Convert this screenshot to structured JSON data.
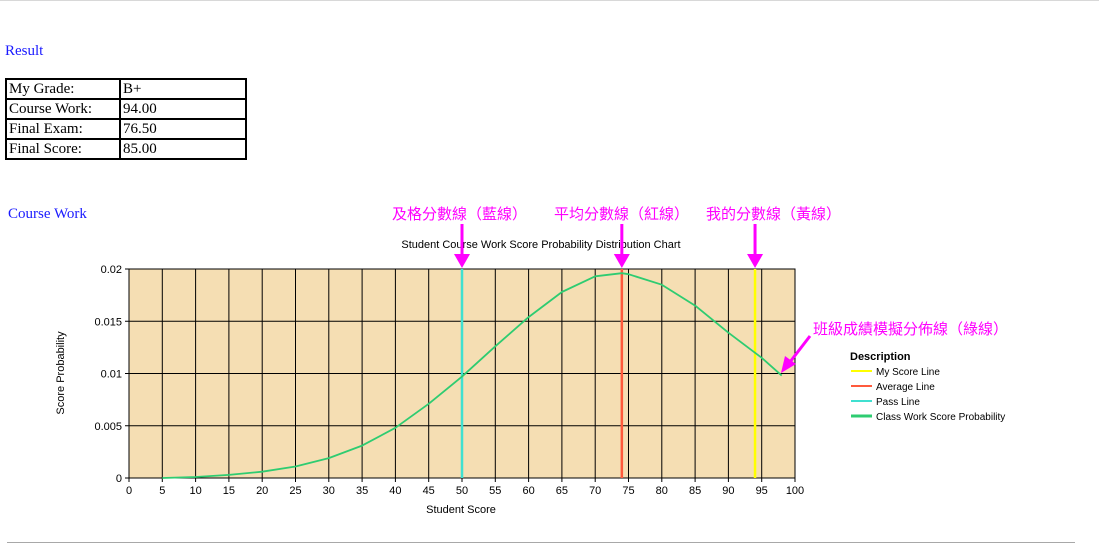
{
  "headings": {
    "result": "Result",
    "course_work": "Course Work"
  },
  "grade_table": [
    {
      "label": "My Grade:",
      "value": "B+"
    },
    {
      "label": "Course Work:",
      "value": "94.00"
    },
    {
      "label": "Final Exam:",
      "value": "76.50"
    },
    {
      "label": "Final Score:",
      "value": "85.00"
    }
  ],
  "annotations": {
    "pass": "及格分數線（藍線）",
    "average": "平均分數線（紅線）",
    "mine": "我的分數線（黃線）",
    "class": "班級成績模擬分佈線（綠線）",
    "color": "#ff00ff"
  },
  "chart_data": {
    "type": "line",
    "title": "Student Course Work Score Probability Distribution Chart",
    "xlabel": "Student Score",
    "ylabel": "Score Probability",
    "xlim": [
      0,
      100
    ],
    "ylim": [
      0,
      0.02
    ],
    "xticks": [
      0,
      5,
      10,
      15,
      20,
      25,
      30,
      35,
      40,
      45,
      50,
      55,
      60,
      65,
      70,
      75,
      80,
      85,
      90,
      95,
      100
    ],
    "yticks": [
      0,
      0.005,
      0.01,
      0.015,
      0.02
    ],
    "ytick_labels": [
      "0",
      "0.005",
      "0.01",
      "0.015",
      "0.02"
    ],
    "grid": true,
    "plot_background": "#f5deb3",
    "legend_title": "Description",
    "legend_position": "right",
    "series": [
      {
        "name": "My Score Line",
        "type": "vline",
        "x": 94,
        "color": "#ffff00"
      },
      {
        "name": "Average Line",
        "type": "vline",
        "x": 74,
        "color": "#ff5a3c"
      },
      {
        "name": "Pass Line",
        "type": "vline",
        "x": 50,
        "color": "#40e0d0"
      },
      {
        "name": "Class Work Score Probability",
        "type": "curve",
        "color": "#2ecc71",
        "x": [
          5,
          10,
          15,
          20,
          25,
          30,
          35,
          40,
          45,
          50,
          55,
          60,
          65,
          70,
          74,
          75,
          80,
          85,
          90,
          95,
          98
        ],
        "y": [
          0.0,
          0.0001,
          0.0003,
          0.0006,
          0.0011,
          0.0019,
          0.0031,
          0.0048,
          0.0071,
          0.0097,
          0.0126,
          0.0154,
          0.0178,
          0.0193,
          0.0196,
          0.0195,
          0.0185,
          0.0165,
          0.0139,
          0.0115,
          0.0098
        ]
      }
    ]
  }
}
